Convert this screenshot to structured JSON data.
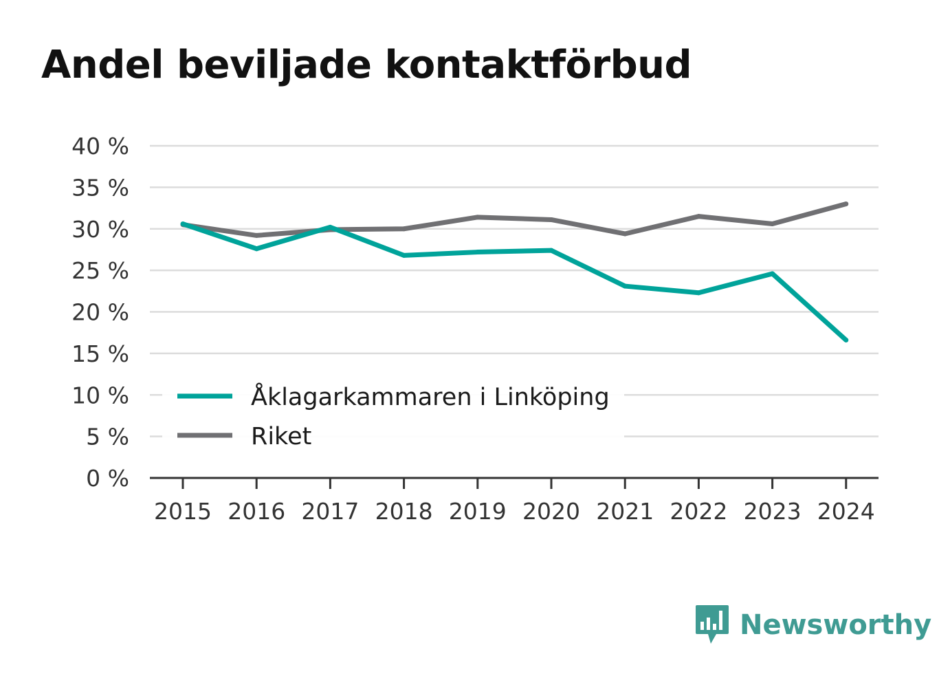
{
  "chart_data": {
    "type": "line",
    "title": "Andel beviljade kontaktförbud",
    "x": [
      "2015",
      "2016",
      "2017",
      "2018",
      "2019",
      "2020",
      "2021",
      "2022",
      "2023",
      "2024"
    ],
    "ylim": [
      0,
      40
    ],
    "yticks": [
      0,
      5,
      10,
      15,
      20,
      25,
      30,
      35,
      40
    ],
    "ytick_labels": [
      "0 %",
      "5 %",
      "10 %",
      "15 %",
      "20 %",
      "25 %",
      "30 %",
      "35 %",
      "40 %"
    ],
    "grid": true,
    "legend_position": "bottom-left",
    "series": [
      {
        "name": "Åklagarkammaren i Linköping",
        "color": "#00a39a",
        "values": [
          30.6,
          27.6,
          30.2,
          26.8,
          27.2,
          27.4,
          23.1,
          22.3,
          24.6,
          16.6
        ]
      },
      {
        "name": "Riket",
        "color": "#707073",
        "values": [
          30.5,
          29.2,
          29.9,
          30.0,
          31.4,
          31.1,
          29.4,
          31.5,
          30.6,
          33.0
        ]
      }
    ]
  },
  "logo": {
    "text": "Newsworthy",
    "icon": "newsworthy-bar-chart-icon",
    "color": "#3f9b93"
  }
}
